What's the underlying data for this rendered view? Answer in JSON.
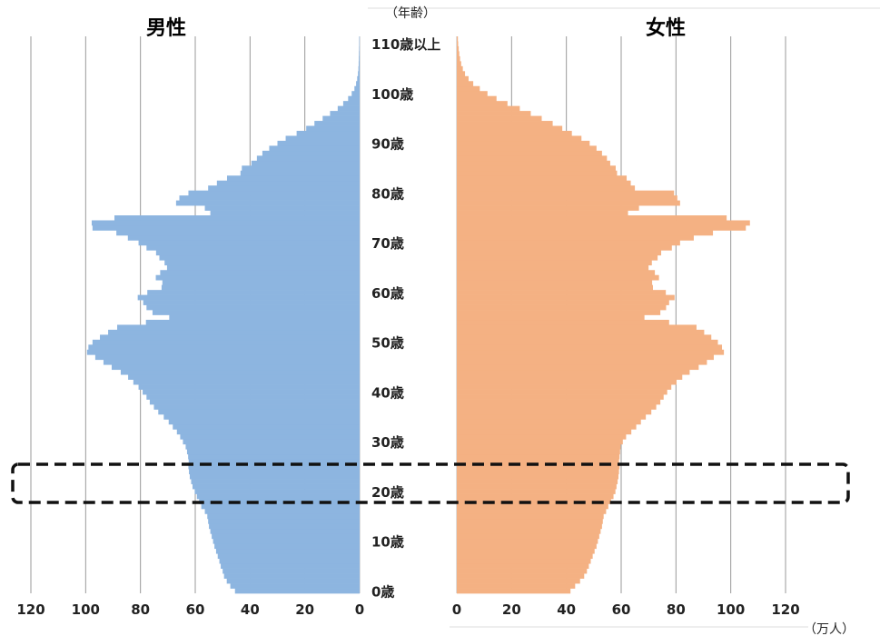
{
  "chart_data": {
    "type": "bar",
    "subtype": "population-pyramid",
    "male_label": "男性",
    "female_label": "女性",
    "age_unit_label": "（年齢）",
    "value_unit_label": "（万人）",
    "x_ticks": [
      0,
      20,
      40,
      60,
      80,
      100,
      120
    ],
    "xlim": [
      0,
      120
    ],
    "ylim": [
      0,
      110
    ],
    "grid": true,
    "age_labels": [
      {
        "age": 0,
        "label": "0歳"
      },
      {
        "age": 10,
        "label": "10歳"
      },
      {
        "age": 20,
        "label": "20歳"
      },
      {
        "age": 30,
        "label": "30歳"
      },
      {
        "age": 40,
        "label": "40歳"
      },
      {
        "age": 50,
        "label": "50歳"
      },
      {
        "age": 60,
        "label": "60歳"
      },
      {
        "age": 70,
        "label": "70歳"
      },
      {
        "age": 80,
        "label": "80歳"
      },
      {
        "age": 90,
        "label": "90歳"
      },
      {
        "age": 100,
        "label": "100歳"
      },
      {
        "age": 110,
        "label": "110歳以上"
      }
    ],
    "highlight_age_range": [
      18,
      24
    ],
    "colors": {
      "male": "#8db5e0",
      "female": "#f4b183",
      "grid": "#999999",
      "highlight": "#111111"
    },
    "series": [
      {
        "name": "男性",
        "values": [
          45.5,
          47.2,
          48.5,
          49.5,
          50.0,
          50.7,
          51.2,
          51.8,
          52.4,
          53.0,
          53.5,
          54.0,
          54.5,
          55.0,
          55.3,
          55.6,
          56.5,
          57.8,
          58.6,
          59.4,
          60.2,
          61.0,
          61.5,
          62.0,
          62.3,
          62.5,
          62.4,
          62.6,
          63.0,
          63.5,
          64.5,
          65.5,
          66.7,
          68.2,
          69.7,
          71.5,
          73.5,
          75.1,
          76.6,
          77.8,
          79.2,
          80.7,
          82.6,
          84.5,
          87.2,
          90.5,
          93.5,
          96.5,
          99.5,
          99.0,
          97.5,
          94.8,
          91.8,
          88.5,
          78.0,
          69.5,
          75.6,
          77.8,
          79.0,
          81.0,
          77.5,
          72.3,
          72.0,
          74.4,
          72.8,
          70.3,
          71.2,
          73.1,
          74.3,
          77.8,
          80.7,
          84.6,
          88.8,
          97.5,
          97.8,
          89.5,
          54.5,
          56.5,
          67.0,
          65.8,
          62.5,
          55.3,
          52.1,
          48.4,
          43.5,
          43.0,
          39.5,
          37.5,
          35.5,
          33.0,
          30.0,
          27.0,
          23.0,
          19.5,
          16.5,
          13.5,
          10.8,
          8.0,
          6.0,
          4.2,
          2.9,
          1.9,
          1.3,
          0.9,
          0.6,
          0.45,
          0.35,
          0.3,
          0.25,
          0.2,
          0.15,
          0.1
        ]
      },
      {
        "name": "女性",
        "values": [
          41.5,
          43.2,
          45.0,
          46.5,
          47.5,
          48.2,
          48.9,
          49.6,
          50.3,
          51.0,
          51.5,
          52.0,
          52.5,
          53.0,
          53.3,
          53.6,
          54.5,
          55.3,
          56.3,
          57.2,
          57.9,
          58.3,
          58.7,
          59.0,
          59.2,
          59.4,
          59.2,
          59.4,
          59.6,
          59.8,
          60.6,
          61.8,
          63.7,
          65.5,
          67.2,
          69.0,
          71.0,
          72.8,
          74.3,
          75.5,
          76.8,
          78.3,
          80.2,
          82.3,
          85.0,
          88.3,
          91.3,
          93.8,
          97.5,
          96.8,
          95.3,
          92.9,
          90.3,
          87.5,
          77.5,
          68.5,
          74.3,
          76.4,
          77.5,
          79.5,
          76.3,
          71.6,
          71.3,
          73.8,
          72.3,
          70.0,
          71.2,
          73.3,
          74.6,
          78.5,
          81.5,
          86.5,
          93.5,
          105.5,
          107.0,
          98.5,
          62.5,
          66.5,
          81.5,
          80.5,
          79.3,
          65.0,
          63.5,
          62.0,
          58.5,
          58.0,
          56.0,
          54.8,
          53.0,
          51.0,
          48.5,
          45.5,
          42.0,
          38.5,
          35.0,
          31.0,
          27.0,
          23.0,
          18.5,
          14.5,
          11.2,
          8.4,
          6.0,
          4.3,
          3.0,
          2.2,
          1.6,
          1.2,
          0.9,
          0.7,
          0.5,
          0.4
        ]
      }
    ]
  }
}
